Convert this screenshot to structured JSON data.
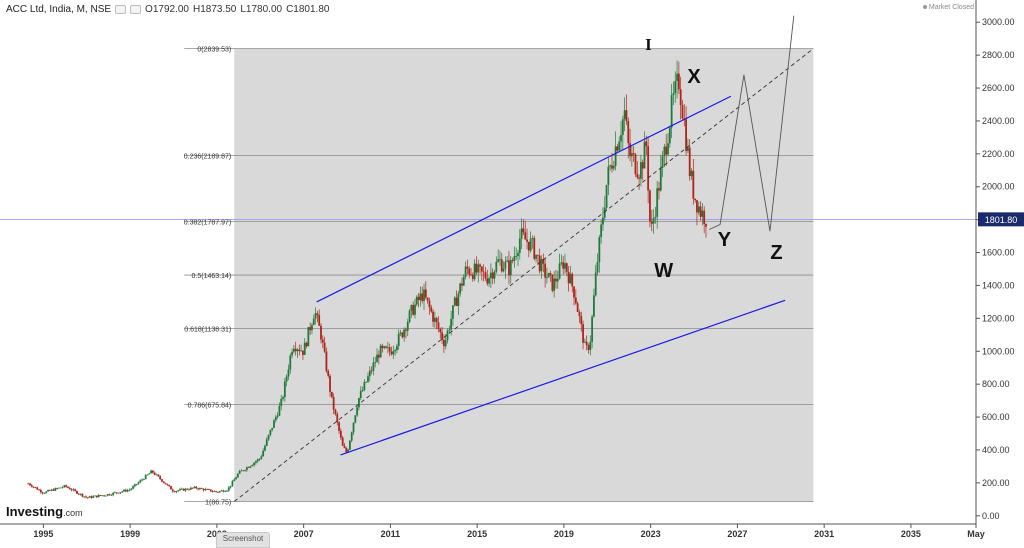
{
  "header": {
    "instrument": "ACC Ltd, India, M, NSE",
    "open": "O1792.00",
    "high": "H1873.50",
    "low": "L1780.00",
    "close": "C1801.80"
  },
  "status": "Market Closed",
  "branding": {
    "name": "Investing",
    "suffix": ".com"
  },
  "screenshot_tab": "Screenshot",
  "colors": {
    "up_candle": "#1f7a3a",
    "down_candle": "#b02318",
    "channel": "#1a1ae6",
    "fib_line": "#8a8a8a",
    "projection": "#555555",
    "price_line": "#8f8fe8",
    "price_tag_bg": "#1b2a6b",
    "fib_zone": "#d9d9d9"
  },
  "chart_data": {
    "type": "candlestick",
    "title": "",
    "xlim": [
      1993.0,
      2038.0
    ],
    "ylim": [
      -50,
      3050
    ],
    "x_ticks": [
      "1995",
      "1999",
      "2003",
      "2007",
      "2011",
      "2015",
      "2019",
      "2023",
      "2027",
      "2031",
      "2035",
      "May"
    ],
    "x_tick_values": [
      1995,
      1999,
      2003,
      2007,
      2011,
      2015,
      2019,
      2023,
      2027,
      2031,
      2035,
      2038
    ],
    "y_ticks": [
      "3000.00",
      "2800.00",
      "2600.00",
      "2400.00",
      "2200.00",
      "2000.00",
      "1800.00",
      "1600.00",
      "1400.00",
      "1200.00",
      "1000.00",
      "800.00",
      "600.00",
      "400.00",
      "200.00",
      "0.00"
    ],
    "y_tick_values": [
      3000,
      2800,
      2600,
      2400,
      2200,
      2000,
      1800,
      1600,
      1400,
      1200,
      1000,
      800,
      600,
      400,
      200,
      0
    ],
    "current_price": "1801.80",
    "current_price_value": 1801.8,
    "fibonacci": {
      "start_year": 2003.8,
      "end_year": 2030.5,
      "levels": [
        {
          "label": "0(2839.53)",
          "value": 2839.53
        },
        {
          "label": "0.236(2189.87)",
          "value": 2189.87
        },
        {
          "label": "0.382(1787.97)",
          "value": 1787.97
        },
        {
          "label": "0.5(1463.14)",
          "value": 1463.14
        },
        {
          "label": "0.618(1138.31)",
          "value": 1138.31
        },
        {
          "label": "0.786(675.84)",
          "value": 675.84
        },
        {
          "label": "1(86.75)",
          "value": 86.75
        }
      ]
    },
    "channel_lines": [
      {
        "name": "upper",
        "x": [
          2007.6,
          2026.7
        ],
        "y": [
          1300,
          2550
        ]
      },
      {
        "name": "lower",
        "x": [
          2008.7,
          2029.2
        ],
        "y": [
          370,
          1310
        ]
      }
    ],
    "trend_line": {
      "x": [
        2003.8,
        2030.5
      ],
      "y": [
        86.75,
        2839.53
      ]
    },
    "projection_path": {
      "x": [
        2025.7,
        2026.2,
        2027.3,
        2028.5,
        2029.6
      ],
      "y": [
        1740,
        1770,
        2680,
        1730,
        3040
      ]
    },
    "wave_labels": [
      {
        "text": "I",
        "x": 2022.9,
        "y": 2830
      },
      {
        "text": "X",
        "x": 2025.0,
        "y": 2630
      },
      {
        "text": "W",
        "x": 2023.6,
        "y": 1450
      },
      {
        "text": "Y",
        "x": 2026.4,
        "y": 1640
      },
      {
        "text": "Z",
        "x": 2028.8,
        "y": 1560
      }
    ],
    "price_series": {
      "name": "",
      "x": [
        1993.0,
        1994.0,
        1995.0,
        1996.0,
        1997.0,
        1998.0,
        1999.0,
        2000.0,
        2001.0,
        2002.0,
        2003.0,
        2003.5,
        2004.0,
        2005.0,
        2006.0,
        2006.5,
        2007.0,
        2007.5,
        2007.8,
        2008.3,
        2008.8,
        2009.0,
        2009.5,
        2010.0,
        2010.5,
        2011.0,
        2011.5,
        2012.0,
        2012.5,
        2013.0,
        2013.5,
        2014.0,
        2014.5,
        2015.0,
        2015.5,
        2016.0,
        2016.5,
        2017.0,
        2017.5,
        2018.0,
        2018.5,
        2019.0,
        2019.5,
        2020.0,
        2020.2,
        2020.5,
        2021.0,
        2021.5,
        2021.8,
        2022.0,
        2022.5,
        2022.8,
        2023.0,
        2023.3,
        2023.5,
        2024.0,
        2024.3,
        2024.5,
        2024.8,
        2025.0,
        2025.3,
        2025.6
      ],
      "y": [
        250,
        220,
        140,
        180,
        110,
        130,
        160,
        270,
        150,
        170,
        145,
        160,
        260,
        350,
        700,
        1050,
        1000,
        1250,
        1100,
        700,
        420,
        380,
        700,
        850,
        1000,
        1000,
        1100,
        1250,
        1350,
        1200,
        1050,
        1300,
        1500,
        1480,
        1450,
        1550,
        1500,
        1700,
        1650,
        1500,
        1400,
        1550,
        1350,
        1000,
        1050,
        1500,
        2050,
        2300,
        2450,
        2200,
        2100,
        2250,
        1700,
        1950,
        2100,
        2500,
        2650,
        2450,
        2100,
        1950,
        1850,
        1801.8
      ]
    }
  }
}
